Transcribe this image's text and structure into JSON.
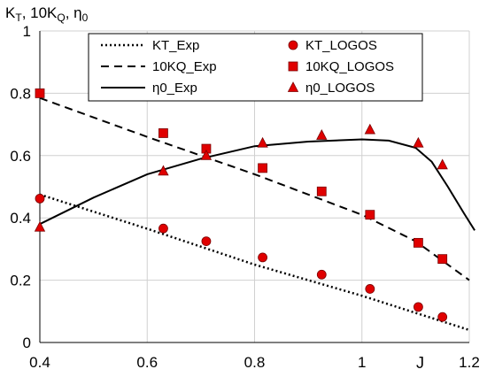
{
  "chart_data": {
    "type": "line",
    "title": "",
    "ylabel_parts": [
      "K",
      "T",
      ", 10K",
      "Q",
      ", η",
      "0"
    ],
    "xlabel": "J",
    "xlim": [
      0.4,
      1.2
    ],
    "ylim": [
      0,
      1
    ],
    "x_ticks": [
      "0.4",
      "0.6",
      "0.8",
      "1",
      "1.2"
    ],
    "y_ticks": [
      "0",
      "0.2",
      "0.4",
      "0.6",
      "0.8",
      "1"
    ],
    "grid": true,
    "legend_placement": "top",
    "series": [
      {
        "name": "KT_Exp",
        "style": "dotted",
        "x": [
          0.4,
          0.6,
          0.8,
          1.0,
          1.2
        ],
        "y": [
          0.475,
          0.365,
          0.25,
          0.15,
          0.04
        ]
      },
      {
        "name": "10KQ_Exp",
        "style": "dashed",
        "x": [
          0.4,
          0.6,
          0.8,
          1.0,
          1.1,
          1.2
        ],
        "y": [
          0.785,
          0.66,
          0.54,
          0.41,
          0.325,
          0.2
        ]
      },
      {
        "name": "η0_Exp",
        "style": "solid",
        "x": [
          0.4,
          0.5,
          0.6,
          0.7,
          0.8,
          0.9,
          1.0,
          1.05,
          1.1,
          1.13,
          1.16,
          1.19,
          1.21
        ],
        "y": [
          0.38,
          0.465,
          0.54,
          0.59,
          0.63,
          0.645,
          0.652,
          0.648,
          0.625,
          0.58,
          0.5,
          0.415,
          0.36
        ]
      },
      {
        "name": "KT_LOGOS",
        "marker": "circle",
        "x": [
          0.4,
          0.63,
          0.71,
          0.815,
          0.925,
          1.015,
          1.105,
          1.15
        ],
        "y": [
          0.462,
          0.366,
          0.325,
          0.273,
          0.218,
          0.172,
          0.114,
          0.082
        ]
      },
      {
        "name": "10KQ_LOGOS",
        "marker": "square",
        "x": [
          0.4,
          0.63,
          0.71,
          0.815,
          0.925,
          1.015,
          1.105,
          1.15
        ],
        "y": [
          0.8,
          0.672,
          0.622,
          0.56,
          0.485,
          0.41,
          0.32,
          0.268
        ]
      },
      {
        "name": "η0_LOGOS",
        "marker": "triangle",
        "x": [
          0.4,
          0.63,
          0.71,
          0.815,
          0.925,
          1.015,
          1.105,
          1.15
        ],
        "y": [
          0.37,
          0.55,
          0.6,
          0.64,
          0.665,
          0.683,
          0.64,
          0.57
        ]
      }
    ],
    "colors": {
      "marker_fill": "#e00000",
      "marker_stroke": "#7a0000",
      "line": "#000000",
      "grid": "#d0d0d0"
    }
  }
}
